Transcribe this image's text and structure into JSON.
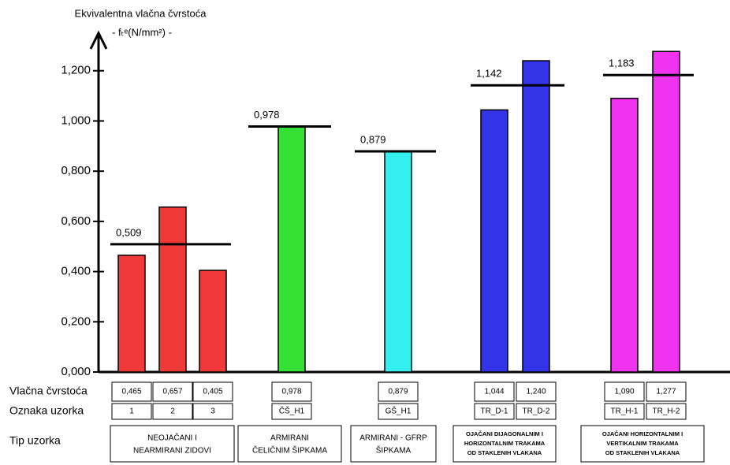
{
  "chart_data": {
    "type": "bar",
    "y_label": [
      "Ekvivalentna vlačna čvrstoća",
      "- fₜᵉ(N/mm²) -"
    ],
    "ylim": [
      0,
      1.35
    ],
    "yticks": [
      {
        "value": 0,
        "label": "0,000"
      },
      {
        "value": 0.2,
        "label": "0,200"
      },
      {
        "value": 0.4,
        "label": "0,400"
      },
      {
        "value": 0.6,
        "label": "0,600"
      },
      {
        "value": 0.8,
        "label": "0,800"
      },
      {
        "value": 1.0,
        "label": "1,000"
      },
      {
        "value": 1.2,
        "label": "1,200"
      }
    ],
    "row_headers": [
      "Vlačna čvrstoća",
      "Oznaka uzorka",
      "Tip uzorka"
    ],
    "groups": [
      {
        "type_label": [
          "NEOJAČANI I",
          "NEARMIRANI ZIDOVI"
        ],
        "color": "#f03a3a",
        "categories": [
          "1",
          "2",
          "3"
        ],
        "values": [
          0.465,
          0.657,
          0.405
        ],
        "value_labels": [
          "0,465",
          "0,657",
          "0,405"
        ],
        "mean": 0.509,
        "mean_label": "0,509"
      },
      {
        "type_label": [
          "ARMIRANI",
          "ČELIČNIM ŠIPKAMA"
        ],
        "color": "#33e033",
        "categories": [
          "ČŠ_H1"
        ],
        "values": [
          0.978
        ],
        "value_labels": [
          "0,978"
        ],
        "mean": 0.978,
        "mean_label": "0,978"
      },
      {
        "type_label": [
          "ARMIRANI - GFRP",
          "ŠIPKAMA"
        ],
        "color": "#33f0f0",
        "categories": [
          "GŠ_H1"
        ],
        "values": [
          0.879
        ],
        "value_labels": [
          "0,879"
        ],
        "mean": 0.879,
        "mean_label": "0,879"
      },
      {
        "type_label": [
          "OJAČANI DIJAGONALNIM I",
          "HORIZONTALNIM TRAKAMA",
          "OD STAKLENIH VLAKANA"
        ],
        "color": "#3333e8",
        "categories": [
          "TR_D-1",
          "TR_D-2"
        ],
        "values": [
          1.044,
          1.24
        ],
        "value_labels": [
          "1,044",
          "1,240"
        ],
        "mean": 1.142,
        "mean_label": "1,142"
      },
      {
        "type_label": [
          "OJAČANI HORIZONTALNIM I",
          "VERTIKALNIM TRAKAMA",
          "OD STAKLENIH VLAKANA"
        ],
        "color": "#f033f0",
        "categories": [
          "TR_H-1",
          "TR_H-2"
        ],
        "values": [
          1.09,
          1.277
        ],
        "value_labels": [
          "1,090",
          "1,277"
        ],
        "mean": 1.183,
        "mean_label": "1,183"
      }
    ]
  }
}
